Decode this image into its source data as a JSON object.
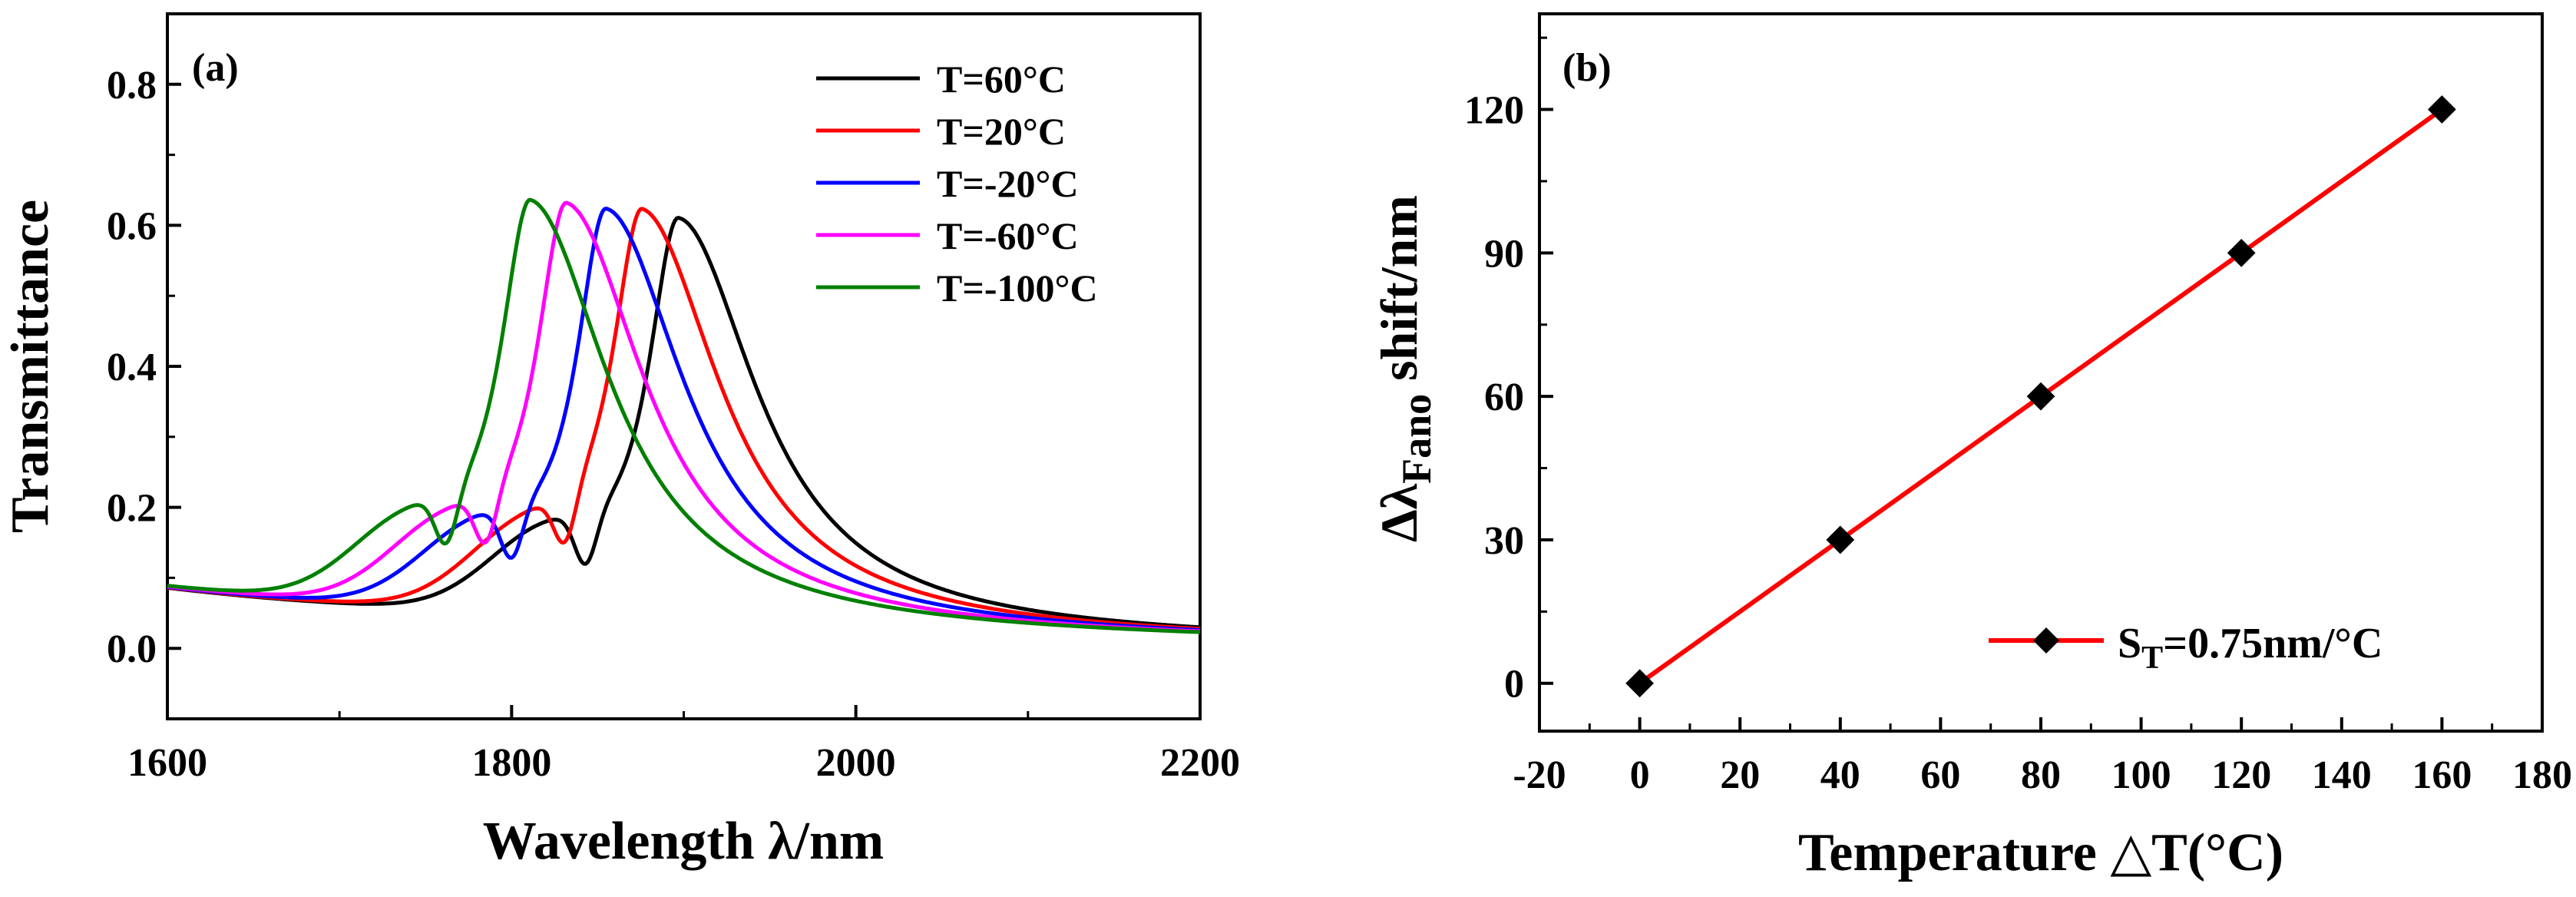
{
  "chart_data": [
    {
      "type": "line",
      "panel_label": "(a)",
      "xlabel": "Wavelength λ/nm",
      "ylabel": "Transmittance",
      "xlim": [
        1600,
        2200
      ],
      "ylim": [
        -0.1,
        0.9
      ],
      "xticks": [
        1600,
        1800,
        2000,
        2200
      ],
      "xtick_labels": [
        "1600",
        "1800",
        "2000",
        "2200"
      ],
      "yticks": [
        0.0,
        0.2,
        0.4,
        0.6,
        0.8
      ],
      "ytick_labels": [
        "0.0",
        "0.2",
        "0.4",
        "0.6",
        "0.8"
      ],
      "legend_position": "top-right",
      "series": [
        {
          "name": "T=60°C",
          "color": "#000000",
          "peak_wavelength": 1897,
          "peak_value": 0.603,
          "dip_wavelength": 1843,
          "dip_value": 0.129,
          "shoulder_wavelength": 1820,
          "shoulder_value": 0.175
        },
        {
          "name": "T=20°C",
          "color": "#ff0000",
          "peak_wavelength": 1876,
          "peak_value": 0.61,
          "dip_wavelength": 1831,
          "dip_value": 0.129,
          "shoulder_wavelength": 1808,
          "shoulder_value": 0.175
        },
        {
          "name": "T=-20°C",
          "color": "#0000ff",
          "peak_wavelength": 1855,
          "peak_value": 0.615,
          "dip_wavelength": 1800,
          "dip_value": 0.129,
          "shoulder_wavelength": 1780,
          "shoulder_value": 0.175
        },
        {
          "name": "T=-60°C",
          "color": "#ff00ff",
          "peak_wavelength": 1832,
          "peak_value": 0.62,
          "dip_wavelength": 1785,
          "dip_value": 0.129,
          "shoulder_wavelength": 1762,
          "shoulder_value": 0.175
        },
        {
          "name": "T=-100°C",
          "color": "#008000",
          "peak_wavelength": 1811,
          "peak_value": 0.625,
          "dip_wavelength": 1762,
          "dip_value": 0.129,
          "shoulder_wavelength": 1740,
          "shoulder_value": 0.175
        }
      ]
    },
    {
      "type": "line",
      "panel_label": "(b)",
      "xlabel": "Temperature △T(°C)",
      "ylabel_main": "Δλ",
      "ylabel_sub": "Fano",
      "ylabel_rest": " shift/nm",
      "xlim": [
        -20,
        180
      ],
      "ylim": [
        -10,
        140
      ],
      "xticks": [
        -20,
        0,
        20,
        40,
        60,
        80,
        100,
        120,
        140,
        160,
        180
      ],
      "xtick_labels": [
        "-20",
        "0",
        "20",
        "40",
        "60",
        "80",
        "100",
        "120",
        "140",
        "160",
        "180"
      ],
      "yticks": [
        0,
        30,
        60,
        90,
        120
      ],
      "ytick_labels": [
        "0",
        "30",
        "60",
        "90",
        "120"
      ],
      "legend_position": "bottom-right",
      "series": [
        {
          "name_main": "S",
          "name_sub": "T",
          "name_rest": "=0.75nm/°C",
          "color": "#ff0000",
          "marker": "diamond",
          "marker_color": "#000000",
          "x": [
            0,
            40,
            80,
            120,
            160
          ],
          "y": [
            0,
            30,
            60,
            90,
            120
          ]
        }
      ]
    }
  ]
}
